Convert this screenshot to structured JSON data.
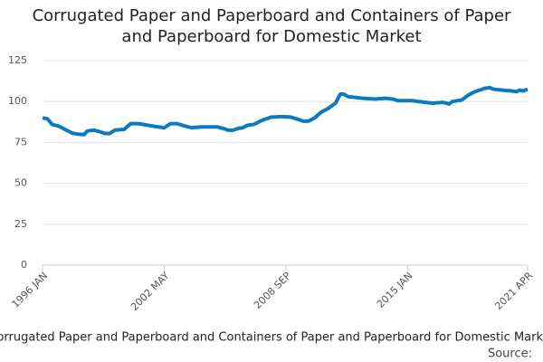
{
  "chart_data": {
    "type": "line",
    "title": "Corrugated Paper and Paperboard and Containers of Paper and Paperboard for Domestic Market",
    "source": "Source:",
    "categories": [
      "1996 JAN",
      null,
      null,
      null,
      null,
      null,
      null,
      null,
      null,
      null,
      null,
      null,
      null,
      null,
      null,
      null,
      null,
      null,
      null,
      null,
      null,
      null,
      null,
      null,
      null,
      null,
      null,
      null,
      null,
      null,
      null,
      null,
      null,
      null,
      null,
      null,
      null,
      null,
      null,
      null,
      null,
      null,
      null,
      null,
      null,
      null,
      null,
      null,
      null,
      null,
      null,
      null,
      null,
      null,
      null,
      null,
      null,
      null,
      null,
      null,
      null,
      null,
      null,
      null,
      null,
      null,
      null,
      null,
      null,
      null,
      null,
      null,
      null,
      null,
      null,
      null,
      "2002 MAY",
      null,
      null,
      null,
      null,
      null,
      null,
      null,
      null,
      null,
      null,
      null,
      null,
      null,
      null,
      null,
      null,
      null,
      null,
      null,
      null,
      null,
      null,
      null,
      null,
      null,
      null,
      null,
      null,
      null,
      null,
      null,
      null,
      null,
      null,
      null,
      null,
      null,
      null,
      null,
      null,
      null,
      null,
      null,
      null,
      null,
      null,
      null,
      null,
      null,
      null,
      null,
      null,
      null,
      null,
      null,
      null,
      null,
      null,
      null,
      null,
      null,
      null,
      null,
      null,
      null,
      null,
      null,
      null,
      null,
      null,
      null,
      null,
      null,
      null,
      null,
      "2008 SEP",
      null,
      null,
      null,
      null,
      null,
      null,
      null,
      null,
      null,
      null,
      null,
      null,
      null,
      null,
      null,
      null,
      null,
      null,
      null,
      null,
      null,
      null,
      null,
      null,
      null,
      null,
      null,
      null,
      null,
      null,
      null,
      null,
      null,
      null,
      null,
      null,
      null,
      null,
      null,
      null,
      null,
      null,
      null,
      null,
      null,
      null,
      null,
      null,
      null,
      null,
      null,
      null,
      null,
      null,
      null,
      null,
      null,
      null,
      null,
      null,
      null,
      null,
      null,
      null,
      null,
      null,
      null,
      null,
      null,
      null,
      null,
      null,
      null,
      null,
      null,
      "2015 JAN",
      null,
      null,
      null,
      null,
      null,
      null,
      null,
      null,
      null,
      null,
      null,
      null,
      null,
      null,
      null,
      null,
      null,
      null,
      null,
      null,
      null,
      null,
      null,
      null,
      null,
      null,
      null,
      null,
      null,
      null,
      null,
      null,
      null,
      null,
      null,
      null,
      null,
      null,
      null,
      null,
      null,
      null,
      null,
      null,
      null,
      null,
      null,
      null,
      null,
      null,
      null,
      null,
      null,
      null,
      null,
      null,
      null,
      null,
      null,
      null,
      null,
      null,
      null,
      null,
      null,
      null,
      null,
      null,
      null,
      null,
      null,
      null,
      null,
      null,
      "2021 APR"
    ],
    "series": [
      {
        "name": "Corrugated Paper and Paperboard and Containers of Paper and Paperboard for Domestic Market",
        "color": "#0a7bbf",
        "values": [
          90,
          89.8,
          89.7,
          89.5,
          88.3,
          87.2,
          86,
          85.8,
          85.5,
          85.3,
          85,
          84.5,
          84,
          83.5,
          83,
          82.5,
          82,
          81.5,
          81,
          80.5,
          80.4,
          80.3,
          80.1,
          80,
          79.9,
          79.9,
          79.8,
          80.9,
          82,
          82.1,
          82.3,
          82.4,
          82.5,
          82.3,
          82,
          81.8,
          81.5,
          81.2,
          80.8,
          80.5,
          80.5,
          80.5,
          80.5,
          81.2,
          81.8,
          82.5,
          82.6,
          82.7,
          82.8,
          82.8,
          82.9,
          83,
          83.9,
          84.8,
          85.6,
          86.5,
          86.5,
          86.5,
          86.5,
          86.5,
          86.5,
          86.3,
          86.2,
          86,
          85.8,
          85.7,
          85.5,
          85.3,
          85.2,
          85,
          84.8,
          84.7,
          84.5,
          84.4,
          84.3,
          84.1,
          84,
          84.6,
          85.3,
          85.9,
          86.5,
          86.5,
          86.5,
          86.5,
          86.5,
          86.2,
          85.9,
          85.6,
          85.3,
          85,
          84.8,
          84.5,
          84.3,
          84,
          84.1,
          84.2,
          84.3,
          84.3,
          84.4,
          84.5,
          84.5,
          84.5,
          84.5,
          84.5,
          84.5,
          84.5,
          84.5,
          84.5,
          84.5,
          84.5,
          84.3,
          84,
          83.8,
          83.5,
          83.2,
          82.8,
          82.5,
          82.5,
          82.5,
          82.5,
          82.8,
          83.2,
          83.5,
          83.7,
          83.8,
          84,
          84.5,
          85,
          85.5,
          85.6,
          85.8,
          85.9,
          86,
          86.5,
          87,
          87.5,
          88,
          88.5,
          88.8,
          89.2,
          89.5,
          89.8,
          90.2,
          90.5,
          90.5,
          90.6,
          90.6,
          90.7,
          90.7,
          90.8,
          90.8,
          90.7,
          90.7,
          90.6,
          90.6,
          90.5,
          90.2,
          89.9,
          89.6,
          89.3,
          89,
          88.7,
          88.3,
          88,
          88,
          88,
          88,
          88.5,
          89,
          89.5,
          90,
          90.9,
          91.8,
          92.6,
          93.5,
          94,
          94.5,
          95,
          95.5,
          96.2,
          96.9,
          97.6,
          98.3,
          99,
          100.8,
          102.7,
          104.5,
          104.5,
          104.5,
          104,
          103.5,
          103,
          102.9,
          102.8,
          102.7,
          102.6,
          102.4,
          102.3,
          102.2,
          102.1,
          102,
          101.9,
          101.9,
          101.8,
          101.8,
          101.7,
          101.6,
          101.6,
          101.5,
          101.6,
          101.7,
          101.8,
          101.8,
          101.9,
          102,
          101.9,
          101.8,
          101.7,
          101.6,
          101.5,
          101.2,
          100.8,
          100.5,
          100.5,
          100.5,
          100.5,
          100.5,
          100.5,
          100.5,
          100.5,
          100.5,
          100.5,
          100.4,
          100.3,
          100.1,
          100,
          99.9,
          99.8,
          99.6,
          99.5,
          99.4,
          99.3,
          99.2,
          99.1,
          99,
          99.1,
          99.2,
          99.3,
          99.3,
          99.4,
          99.5,
          99.3,
          99,
          98.8,
          98.5,
          99.3,
          100,
          100.2,
          100.3,
          100.5,
          100.7,
          100.8,
          101,
          101.8,
          102.5,
          103.3,
          104,
          104.5,
          105,
          105.5,
          106,
          106.3,
          106.7,
          107,
          107.3,
          107.7,
          108,
          108.2,
          108.3,
          108.5,
          108.2,
          107.8,
          107.5,
          107.4,
          107.3,
          107.2,
          107.1,
          107,
          106.9,
          106.8,
          106.7,
          106.6,
          106.6,
          106.5,
          106.3,
          106.2,
          106,
          106.5,
          107,
          106.8,
          106.5,
          106.8,
          107.2,
          107.5
        ]
      }
    ],
    "ylim": [
      0,
      125
    ],
    "yticks": [
      0,
      25,
      50,
      75,
      100,
      125
    ],
    "grid": true
  }
}
